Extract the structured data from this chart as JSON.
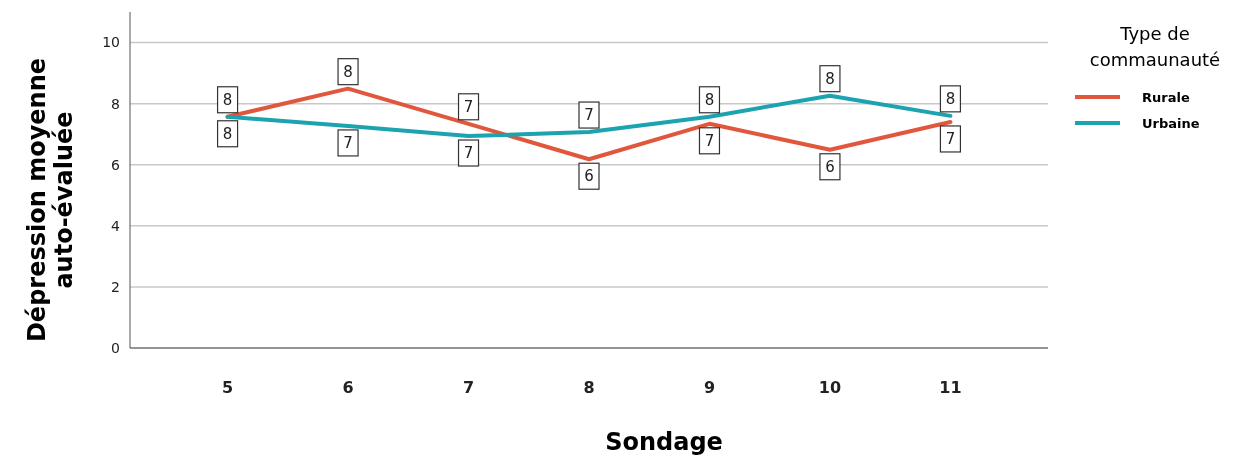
{
  "chart_data": {
    "type": "line",
    "xlabel": "Sondage",
    "ylabel": "Dépression moyenne auto-évaluée",
    "legend_title": "Type de commaunauté",
    "categories": [
      "5",
      "6",
      "7",
      "8",
      "9",
      "10",
      "11"
    ],
    "ylim": [
      0,
      11
    ],
    "yticks": [
      0,
      2,
      4,
      6,
      8,
      10
    ],
    "grid": "y",
    "legend": "right",
    "marker": "none",
    "line_style": "solid",
    "series": [
      {
        "name": "Rurale",
        "color": "#e1573d",
        "values": [
          7.57,
          8.49,
          7.34,
          6.18,
          7.34,
          6.49,
          7.4
        ],
        "value_labels": [
          "8",
          "8",
          "7",
          "6",
          "7",
          "6",
          "7"
        ]
      },
      {
        "name": "Urbaine",
        "color": "#1ca3b0",
        "values": [
          7.57,
          7.27,
          6.94,
          7.07,
          7.57,
          8.26,
          7.6
        ],
        "value_labels": [
          "8",
          "7",
          "7",
          "7",
          "8",
          "8",
          "8"
        ]
      }
    ]
  }
}
